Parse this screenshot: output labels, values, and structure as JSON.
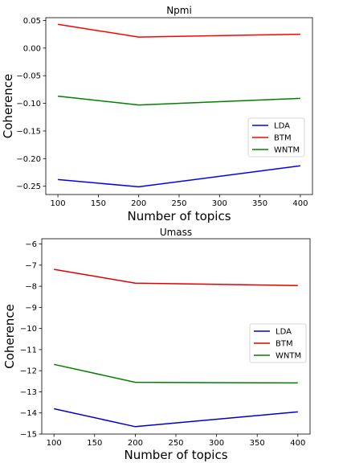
{
  "chart_data": [
    {
      "type": "line",
      "title": "Npmi",
      "xlabel": "Number of topics",
      "ylabel": "Coherence",
      "x": [
        100,
        200,
        400
      ],
      "xlim": [
        85,
        415
      ],
      "ylim": [
        -0.265,
        0.055
      ],
      "xticks": [
        100,
        150,
        200,
        250,
        300,
        350,
        400
      ],
      "xtick_labels": [
        "100",
        "150",
        "200",
        "250",
        "300",
        "350",
        "400"
      ],
      "yticks": [
        0.05,
        0.0,
        -0.05,
        -0.1,
        -0.15,
        -0.2,
        -0.25
      ],
      "ytick_labels": [
        "0.05",
        "0.00",
        "−0.05",
        "−0.10",
        "−0.15",
        "−0.20",
        "−0.25"
      ],
      "legend_position": "center-right",
      "grid": false,
      "series": [
        {
          "name": "LDA",
          "color": "#0000ff",
          "values": [
            -0.238,
            -0.251,
            -0.213
          ]
        },
        {
          "name": "BTM",
          "color": "#ff0000",
          "values": [
            0.043,
            0.02,
            0.025
          ]
        },
        {
          "name": "WNTM",
          "color": "#008000",
          "values": [
            -0.087,
            -0.103,
            -0.091
          ]
        }
      ]
    },
    {
      "type": "line",
      "title": "Umass",
      "xlabel": "Number of topics",
      "ylabel": "Coherence",
      "x": [
        100,
        200,
        400
      ],
      "xlim": [
        85,
        415
      ],
      "ylim": [
        -15.0,
        -5.75
      ],
      "xticks": [
        100,
        150,
        200,
        250,
        300,
        350,
        400
      ],
      "xtick_labels": [
        "100",
        "150",
        "200",
        "250",
        "300",
        "350",
        "400"
      ],
      "yticks": [
        -6,
        -7,
        -8,
        -9,
        -10,
        -11,
        -12,
        -13,
        -14,
        -15
      ],
      "ytick_labels": [
        "−6",
        "−7",
        "−8",
        "−9",
        "−10",
        "−11",
        "−12",
        "−13",
        "−14",
        "−15"
      ],
      "legend_position": "center-right",
      "grid": false,
      "series": [
        {
          "name": "LDA",
          "color": "#0000cd",
          "values": [
            -13.8,
            -14.65,
            -13.95
          ]
        },
        {
          "name": "BTM",
          "color": "#e00000",
          "values": [
            -7.2,
            -7.85,
            -7.97
          ]
        },
        {
          "name": "WNTM",
          "color": "#008000",
          "values": [
            -11.7,
            -12.55,
            -12.58
          ]
        }
      ]
    }
  ]
}
